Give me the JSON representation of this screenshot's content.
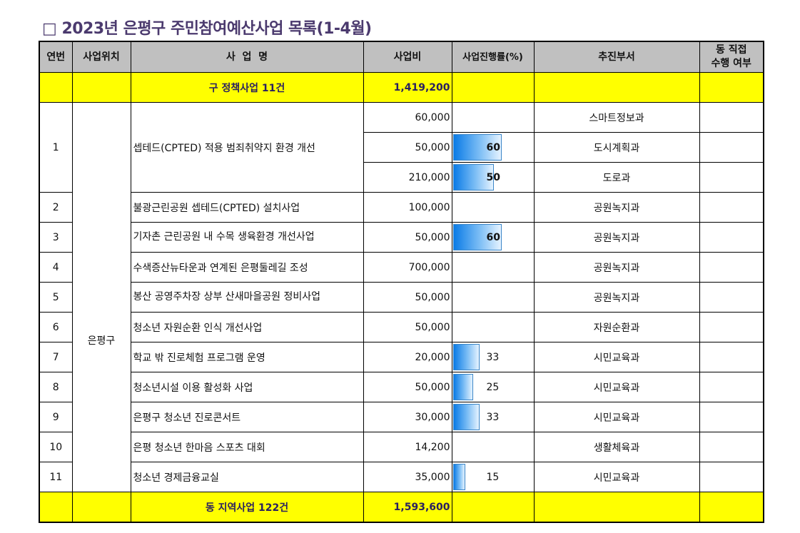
{
  "title": "□ 2023년 은평구 주민참여예산사업 목록(1-4월)",
  "headers": {
    "no": "연번",
    "location": "사업위치",
    "name": "사  업  명",
    "budget": "사업비",
    "progress": "사업진행률(%)",
    "dept": "추진부서",
    "direct_line1": "동 직접",
    "direct_line2": "수행 여부"
  },
  "subtotal_gu": {
    "label": "구 정책사업 11건",
    "budget": "1,419,200"
  },
  "location": "은평구",
  "project1": {
    "no": "1",
    "name": "셉테드(CPTED) 적용 범죄취약지 환경 개선",
    "lines": [
      {
        "budget": "60,000",
        "progress": "",
        "dept": "스마트정보과"
      },
      {
        "budget": "50,000",
        "progress": "60",
        "dept": "도시계획과"
      },
      {
        "budget": "210,000",
        "progress": "50",
        "dept": "도로과"
      }
    ]
  },
  "rows": [
    {
      "no": "2",
      "name": "불광근린공원 셉테드(CPTED) 설치사업",
      "budget": "100,000",
      "progress": "",
      "dept": "공원녹지과"
    },
    {
      "no": "3",
      "name": "기자촌 근린공원 내 수목 생육환경 개선사업",
      "budget": "50,000",
      "progress": "60",
      "dept": "공원녹지과"
    },
    {
      "no": "4",
      "name": "수색증산뉴타운과 연계된 은평둘레길 조성",
      "budget": "700,000",
      "progress": "",
      "dept": "공원녹지과"
    },
    {
      "no": "5",
      "name": "봉산 공영주차장 상부 산새마을공원 정비사업",
      "budget": "50,000",
      "progress": "",
      "dept": "공원녹지과"
    },
    {
      "no": "6",
      "name": "청소년 자원순환 인식 개선사업",
      "budget": "50,000",
      "progress": "",
      "dept": "자원순환과"
    },
    {
      "no": "7",
      "name": "학교 밖 진로체험 프로그램 운영",
      "budget": "20,000",
      "progress": "33",
      "dept": "시민교육과"
    },
    {
      "no": "8",
      "name": "청소년시설 이용 활성화 사업",
      "budget": "50,000",
      "progress": "25",
      "dept": "시민교육과"
    },
    {
      "no": "9",
      "name": "은평구 청소년 진로콘서트",
      "budget": "30,000",
      "progress": "33",
      "dept": "시민교육과"
    },
    {
      "no": "10",
      "name": "은평 청소년 한마음 스포츠 대회",
      "budget": "14,200",
      "progress": "",
      "dept": "생활체육과"
    },
    {
      "no": "11",
      "name": "청소년 경제금융교실",
      "budget": "35,000",
      "progress": "15",
      "dept": "시민교육과"
    }
  ],
  "subtotal_dong": {
    "label": "동 지역사업 122건",
    "budget": "1,593,600"
  },
  "colors": {
    "header_bg": "#c0c0c0",
    "subtotal_bg": "#ffff00",
    "title": "#4b3a6e",
    "bar": "#0a7be6"
  }
}
